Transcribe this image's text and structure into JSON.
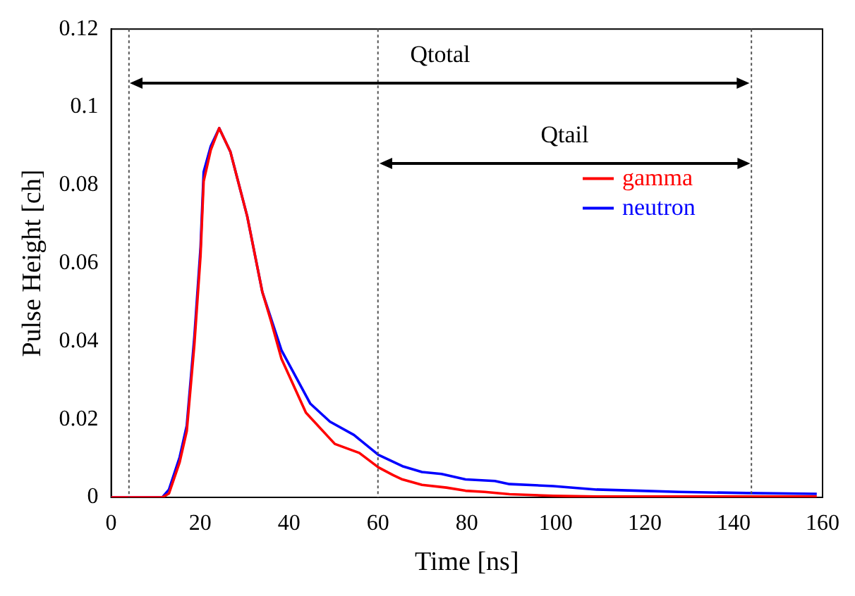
{
  "chart_data": {
    "type": "line",
    "xlabel": "Time [ns]",
    "ylabel": "Pulse Height [ch]",
    "xlim": [
      0,
      160
    ],
    "ylim": [
      0,
      0.12
    ],
    "xticks": [
      0,
      20,
      40,
      60,
      80,
      100,
      120,
      140,
      160
    ],
    "yticks": [
      0,
      0.02,
      0.04,
      0.06,
      0.08,
      0.1,
      0.12
    ],
    "grid": false,
    "legend": "right",
    "marker": "none",
    "line_style": "solid",
    "series": [
      {
        "name": "gamma",
        "color": "#ff0000",
        "x": [
          0,
          11.5,
          13,
          15.4,
          17,
          18.7,
          20.1,
          20.8,
          22.4,
          24.3,
          26.8,
          30.6,
          34,
          36,
          38.3,
          43.8,
          50.3,
          55.8,
          60.1,
          63.4,
          65.5,
          69.9,
          75.4,
          79.7,
          84,
          89.6,
          99.4,
          109.2,
          120,
          140,
          158.7
        ],
        "values": [
          0,
          0,
          0.001,
          0.009,
          0.017,
          0.039,
          0.062,
          0.081,
          0.089,
          0.0946,
          0.0886,
          0.072,
          0.0526,
          0.045,
          0.0355,
          0.0217,
          0.0137,
          0.0114,
          0.0077,
          0.0057,
          0.0046,
          0.0032,
          0.0025,
          0.0017,
          0.0014,
          0.0008,
          0.0004,
          0.0002,
          0.0002,
          0.0002,
          0.0002
        ]
      },
      {
        "name": "neutron",
        "color": "#0000ff",
        "x": [
          0,
          11.5,
          13,
          15.4,
          17,
          18.7,
          20.1,
          20.8,
          22.4,
          24.3,
          26.8,
          30.6,
          34,
          38.3,
          44.8,
          49.2,
          54.6,
          60.1,
          65.5,
          69.9,
          74.3,
          79.7,
          86.3,
          89.6,
          99.4,
          109.2,
          119,
          127.7,
          143,
          158.7
        ],
        "values": [
          0,
          0,
          0.002,
          0.0103,
          0.0184,
          0.041,
          0.064,
          0.0834,
          0.09,
          0.0946,
          0.0886,
          0.072,
          0.0526,
          0.0377,
          0.024,
          0.0194,
          0.016,
          0.0109,
          0.008,
          0.0065,
          0.006,
          0.0046,
          0.0042,
          0.0034,
          0.0029,
          0.002,
          0.0017,
          0.0014,
          0.0011,
          0.0009
        ]
      }
    ],
    "ref_lines": [
      {
        "axis": "x",
        "value": 4,
        "line_style": "dotted"
      },
      {
        "axis": "x",
        "value": 60,
        "line_style": "dotted"
      },
      {
        "axis": "x",
        "value": 144,
        "line_style": "dotted"
      }
    ],
    "annotations": [
      "Qtotal",
      "Qtail"
    ]
  }
}
